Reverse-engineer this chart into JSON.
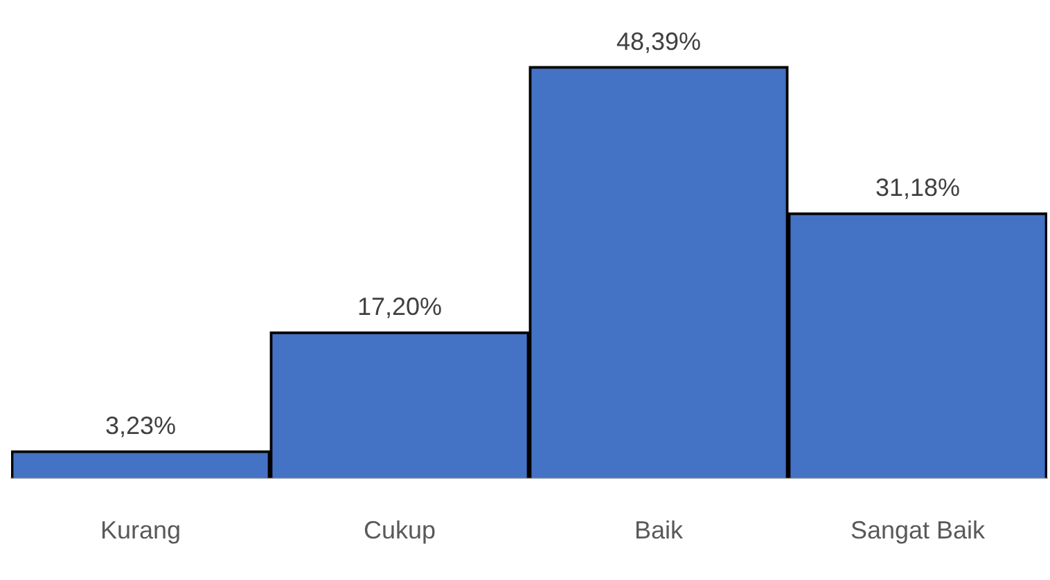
{
  "chart_data": {
    "type": "bar",
    "categories": [
      "Kurang",
      "Cukup",
      "Baik",
      "Sangat Baik"
    ],
    "values": [
      3.23,
      17.2,
      48.39,
      31.18
    ],
    "value_labels": [
      "3,23%",
      "17,20%",
      "48,39%",
      "31,18%"
    ],
    "color": "#4472c4"
  }
}
